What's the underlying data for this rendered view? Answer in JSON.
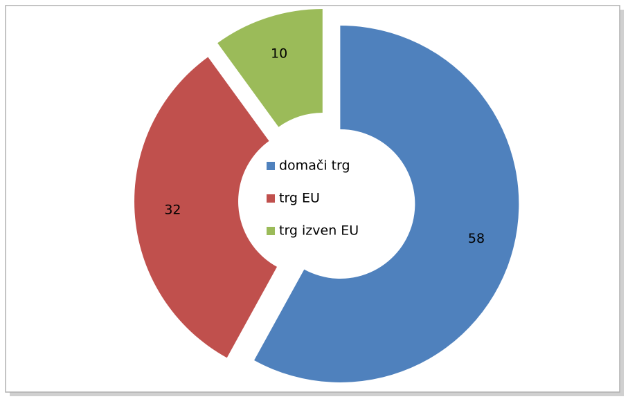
{
  "chart_data": {
    "type": "pie",
    "donut": true,
    "categories": [
      "domači trg",
      "trg EU",
      "trg izven EU"
    ],
    "values": [
      58,
      32,
      10
    ],
    "colors": [
      "#4f81bd",
      "#c0504d",
      "#9bbb59"
    ],
    "exploded": true,
    "legend": "center"
  }
}
